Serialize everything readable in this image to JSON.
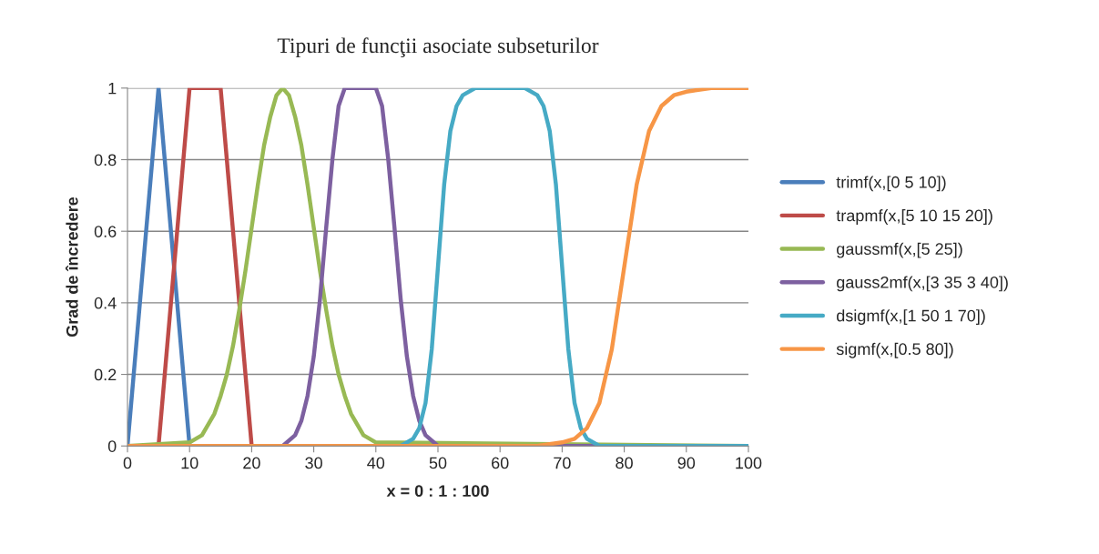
{
  "chart_data": {
    "type": "line",
    "title": "Tipuri de funcţii asociate subseturilor",
    "xlabel": "x = 0 : 1 : 100",
    "ylabel": "Grad de încredere",
    "xlim": [
      0,
      100
    ],
    "ylim": [
      0,
      1
    ],
    "xticks": [
      0,
      10,
      20,
      30,
      40,
      50,
      60,
      70,
      80,
      90,
      100
    ],
    "yticks": [
      0,
      0.2,
      0.4,
      0.6,
      0.8,
      1
    ],
    "grid": "y",
    "legend": "right",
    "marker": "none",
    "line_style": "solid",
    "series": [
      {
        "name": "trimf(x,[0 5 10])",
        "color": "#4a7ebb",
        "x": [
          0,
          5,
          10,
          100
        ],
        "values": [
          0,
          1,
          0,
          0
        ]
      },
      {
        "name": "trapmf(x,[5 10 15 20])",
        "color": "#be4b48",
        "x": [
          0,
          5,
          10,
          15,
          20,
          100
        ],
        "values": [
          0,
          0,
          1,
          1,
          0,
          0
        ]
      },
      {
        "name": "gaussmf(x,[5 25])",
        "color": "#98b954",
        "x": [
          0,
          10,
          12,
          14,
          15,
          16,
          17,
          18,
          19,
          20,
          21,
          22,
          23,
          24,
          25,
          26,
          27,
          28,
          29,
          30,
          31,
          32,
          33,
          34,
          35,
          36,
          38,
          40,
          100
        ],
        "values": [
          0,
          0.01,
          0.03,
          0.09,
          0.14,
          0.2,
          0.28,
          0.38,
          0.49,
          0.61,
          0.73,
          0.84,
          0.92,
          0.98,
          1,
          0.98,
          0.92,
          0.84,
          0.73,
          0.61,
          0.49,
          0.38,
          0.28,
          0.2,
          0.14,
          0.09,
          0.03,
          0.01,
          0
        ]
      },
      {
        "name": "gauss2mf(x,[3 35 3 40])",
        "color": "#7d60a0",
        "x": [
          0,
          25,
          27,
          28,
          29,
          30,
          31,
          32,
          33,
          34,
          35,
          40,
          41,
          42,
          43,
          44,
          45,
          46,
          47,
          48,
          50,
          100
        ],
        "values": [
          0,
          0,
          0.03,
          0.07,
          0.14,
          0.25,
          0.41,
          0.61,
          0.8,
          0.95,
          1,
          1,
          0.95,
          0.8,
          0.61,
          0.41,
          0.25,
          0.14,
          0.07,
          0.03,
          0,
          0
        ]
      },
      {
        "name": "dsigmf(x,[1 50 1 70])",
        "color": "#46aac5",
        "x": [
          0,
          44,
          46,
          47,
          48,
          49,
          50,
          51,
          52,
          53,
          54,
          56,
          64,
          66,
          67,
          68,
          69,
          70,
          71,
          72,
          73,
          74,
          76,
          100
        ],
        "values": [
          0,
          0,
          0.02,
          0.05,
          0.12,
          0.27,
          0.5,
          0.73,
          0.88,
          0.95,
          0.98,
          1,
          1,
          0.98,
          0.95,
          0.88,
          0.73,
          0.5,
          0.27,
          0.12,
          0.05,
          0.02,
          0,
          0
        ]
      },
      {
        "name": "sigmf(x,[0.5 80])",
        "color": "#f79646",
        "x": [
          0,
          66,
          70,
          72,
          74,
          76,
          78,
          80,
          82,
          84,
          86,
          88,
          90,
          94,
          100
        ],
        "values": [
          0,
          0,
          0.01,
          0.02,
          0.05,
          0.12,
          0.27,
          0.5,
          0.73,
          0.88,
          0.95,
          0.98,
          0.99,
          1,
          1
        ]
      }
    ]
  }
}
